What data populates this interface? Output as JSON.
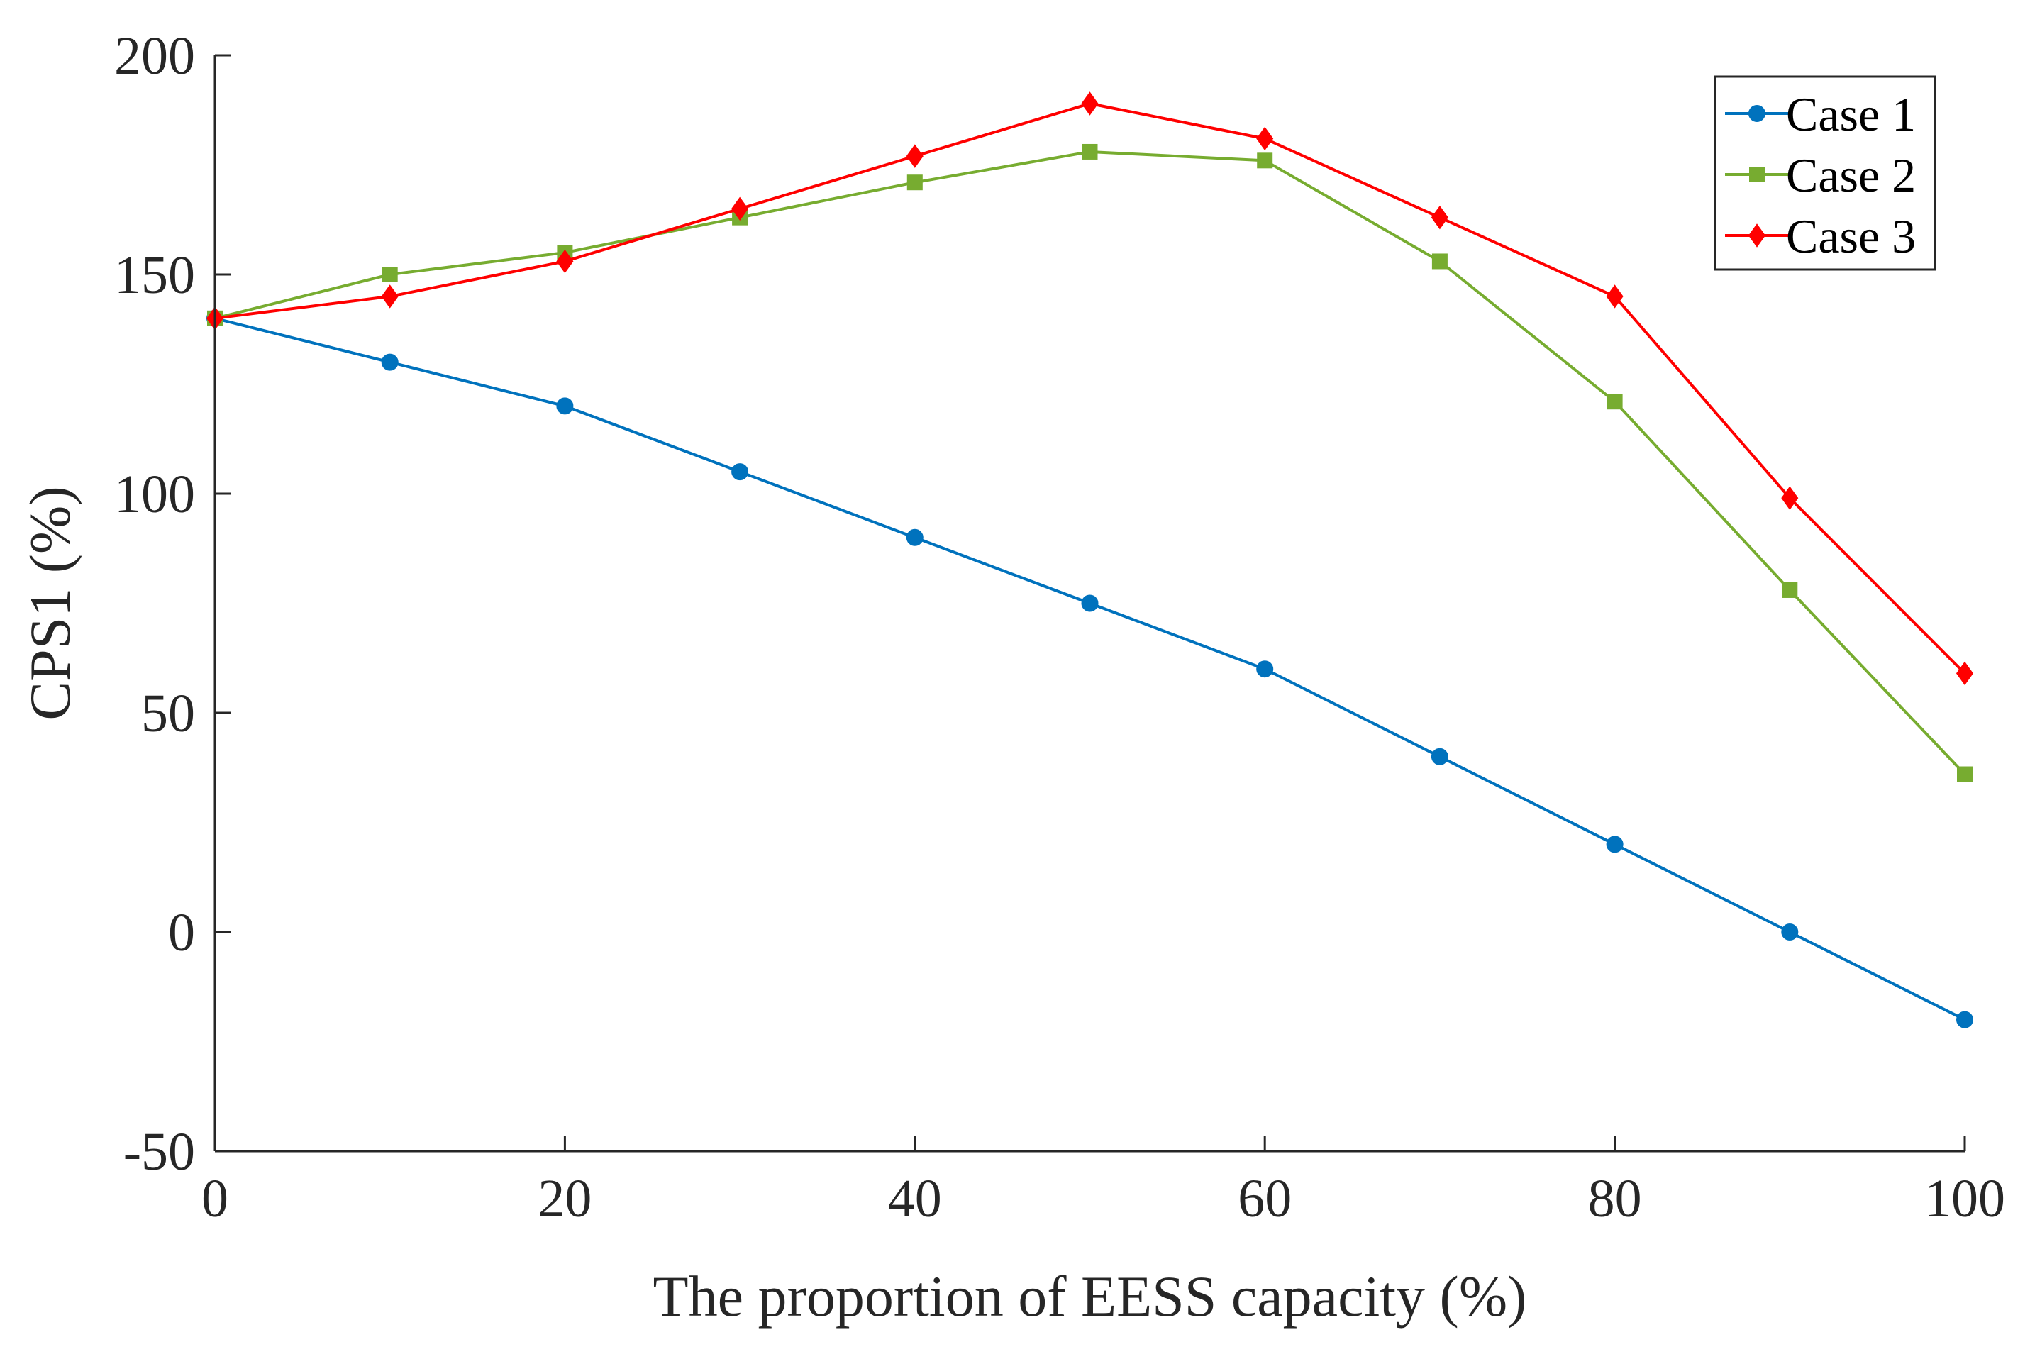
{
  "chart_data": {
    "type": "line",
    "title": "",
    "xlabel": "The proportion of EESS capacity (%)",
    "ylabel": "CPS1 (%)",
    "xlim": [
      0,
      100
    ],
    "ylim": [
      -50,
      200
    ],
    "xticks": [
      0,
      20,
      40,
      60,
      80,
      100
    ],
    "xtick_labels": [
      "0",
      "20",
      "40",
      "60",
      "80",
      "100"
    ],
    "yticks": [
      -50,
      0,
      50,
      100,
      150,
      200
    ],
    "ytick_labels": [
      "-50",
      "0",
      "50",
      "100",
      "150",
      "200"
    ],
    "grid": false,
    "legend_position": "top-right",
    "x": [
      0,
      10,
      20,
      30,
      40,
      50,
      60,
      70,
      80,
      90,
      100
    ],
    "series": [
      {
        "name": "Case 1",
        "color": "#0072BD",
        "marker": "circle",
        "values": [
          140,
          130,
          120,
          105,
          90,
          75,
          60,
          40,
          20,
          0,
          -20
        ]
      },
      {
        "name": "Case 2",
        "color": "#77AC30",
        "marker": "square",
        "values": [
          140,
          150,
          155,
          163,
          171,
          178,
          176,
          153,
          121,
          78,
          36
        ]
      },
      {
        "name": "Case 3",
        "color": "#FF0000",
        "marker": "diamond",
        "values": [
          140,
          145,
          153,
          165,
          177,
          189,
          181,
          163,
          145,
          99,
          59
        ]
      }
    ]
  }
}
